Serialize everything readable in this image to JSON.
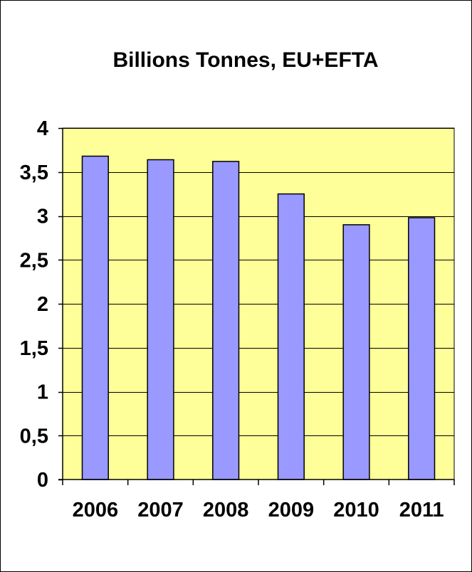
{
  "chart_data": {
    "type": "bar",
    "title": "Billions  Tonnes, EU+EFTA",
    "xlabel": "",
    "ylabel": "",
    "categories": [
      "2006",
      "2007",
      "2008",
      "2009",
      "2010",
      "2011"
    ],
    "values": [
      3.68,
      3.64,
      3.62,
      3.25,
      2.9,
      2.98
    ],
    "ylim": [
      0,
      4
    ],
    "yticks": [
      0,
      0.5,
      1,
      1.5,
      2,
      2.5,
      3,
      3.5,
      4
    ],
    "ytick_labels": [
      "0",
      "0,5",
      "1",
      "1,5",
      "2",
      "2,5",
      "3",
      "3,5",
      "4"
    ],
    "grid": "horizontal",
    "legend": "none",
    "colors": {
      "plot_background": "#FFFF99",
      "bar_fill": "#9999FF",
      "bar_stroke": "#000000",
      "grid": "#000000",
      "page_background": "#FFFFFF"
    }
  }
}
